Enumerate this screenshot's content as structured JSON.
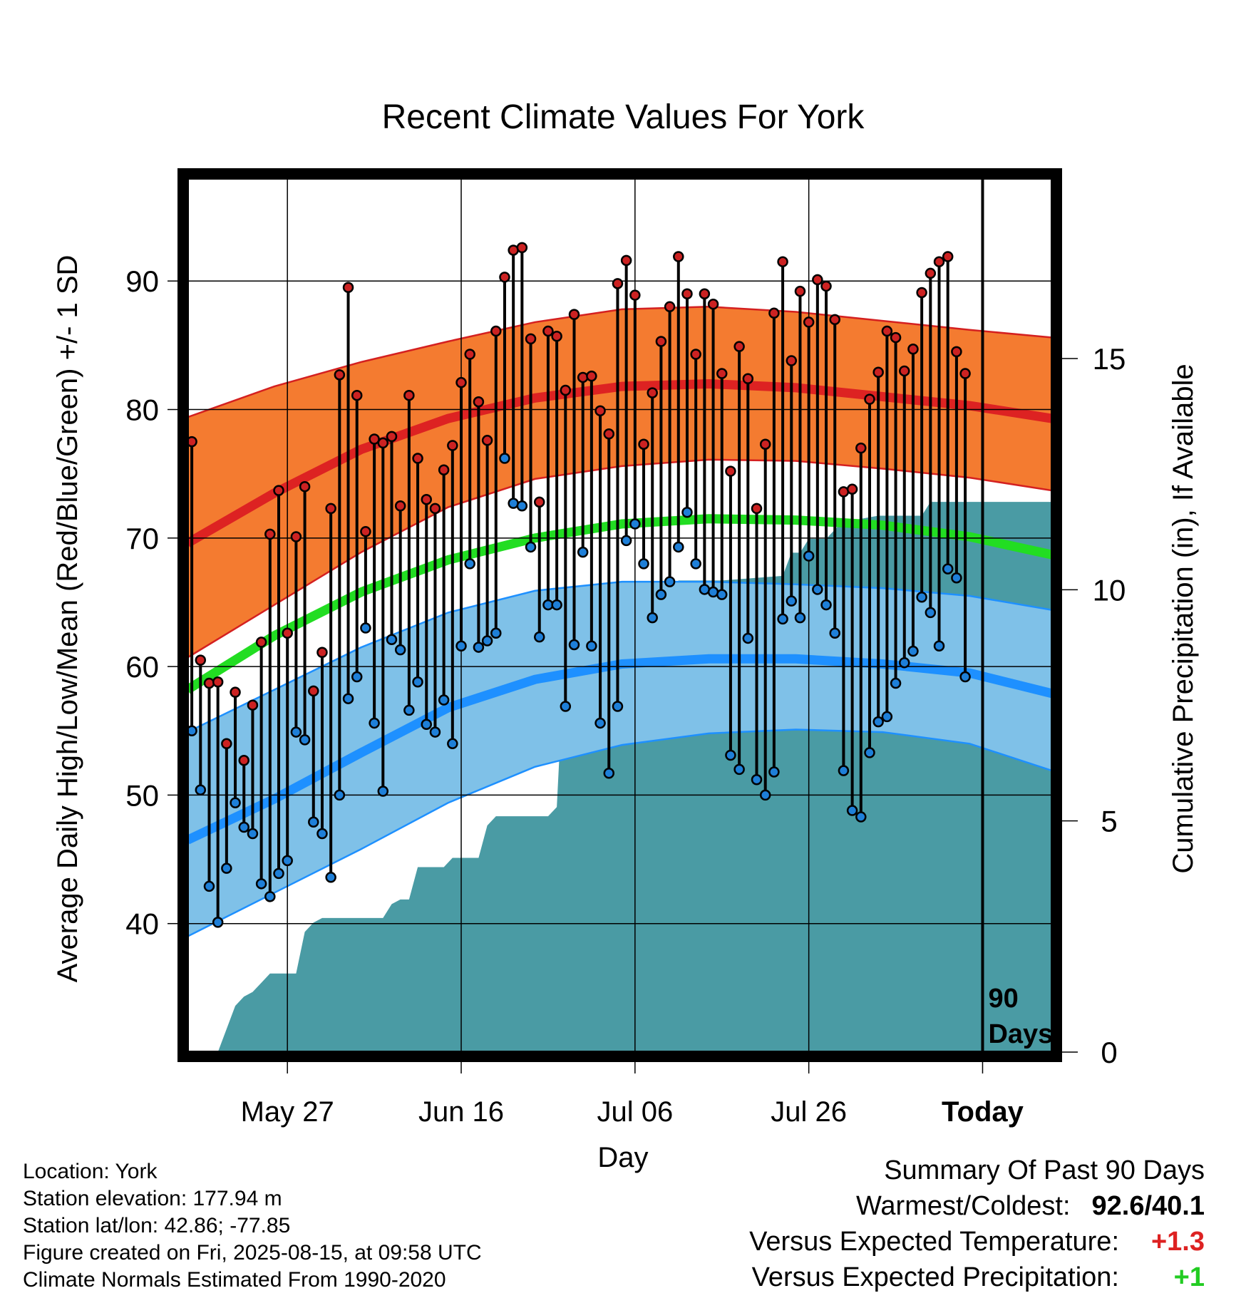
{
  "chart_data": {
    "type": "line",
    "title": "Recent Climate Values For York",
    "xlabel": "Day",
    "ylabel": "Average Daily High/Low/Mean (Red/Blue/Green) +/- 1 SD",
    "y2label": "Cumulative Precipitation (in), If Available",
    "ylim": [
      30,
      98
    ],
    "yticks": [
      40,
      50,
      60,
      70,
      80,
      90
    ],
    "y2lim": [
      0,
      18.9
    ],
    "y2ticks": [
      0,
      5,
      10,
      15
    ],
    "xlim": [
      -90,
      9.5
    ],
    "xticks": [
      {
        "x": -78.5,
        "label": "May 27"
      },
      {
        "x": -58.5,
        "label": "Jun 16"
      },
      {
        "x": -38.5,
        "label": "Jul 06"
      },
      {
        "x": -18.5,
        "label": "Jul 26"
      },
      {
        "x": 1.5,
        "label": "Today"
      }
    ],
    "today_marker_label": "90 Days",
    "grid": true,
    "colors": {
      "high_band": "#f47b30",
      "high_mean": "#dd2222",
      "low_band": "#7fc1e8",
      "low_mean": "#1e90ff",
      "mean": "#22dd22",
      "precip": "#4a9ba4",
      "high_dot": "#cc2222",
      "low_dot": "#1e7fd8"
    },
    "normals": {
      "x": [
        -90,
        -80,
        -70,
        -60,
        -50,
        -40,
        -30,
        -20,
        -10,
        0,
        9.5
      ],
      "high_mean": [
        69.6,
        73.5,
        76.9,
        79.3,
        80.9,
        81.8,
        82.0,
        81.7,
        81.0,
        80.3,
        79.3
      ],
      "high_plus_sd": [
        79.4,
        81.8,
        83.7,
        85.3,
        86.8,
        87.8,
        88.0,
        87.6,
        86.9,
        86.2,
        85.6
      ],
      "high_minus_sd": [
        60.7,
        64.8,
        68.9,
        72.4,
        74.6,
        75.6,
        76.1,
        76.0,
        75.4,
        74.7,
        73.7
      ],
      "low_mean": [
        46.5,
        49.7,
        53.3,
        56.8,
        59.0,
        60.2,
        60.6,
        60.6,
        60.2,
        59.5,
        57.9
      ],
      "low_plus_sd": [
        54.9,
        58.2,
        61.5,
        64.2,
        65.9,
        66.6,
        66.6,
        66.4,
        66.1,
        65.5,
        64.4
      ],
      "low_minus_sd": [
        39.0,
        42.4,
        45.8,
        49.4,
        52.2,
        53.9,
        54.8,
        55.1,
        54.9,
        54.0,
        51.9
      ],
      "mean": [
        58.2,
        62.4,
        65.8,
        68.3,
        70.0,
        71.1,
        71.5,
        71.4,
        71.0,
        70.1,
        68.7
      ]
    },
    "series": [
      {
        "name": "High",
        "values": [
          77.5,
          60.5,
          58.7,
          58.8,
          54.0,
          58.0,
          52.7,
          57.0,
          61.9,
          70.3,
          73.7,
          62.6,
          70.1,
          74.0,
          58.1,
          61.1,
          72.3,
          82.7,
          89.5,
          81.1,
          70.5,
          77.7,
          77.4,
          77.9,
          72.5,
          81.1,
          76.2,
          73.0,
          72.3,
          75.3,
          77.2,
          82.1,
          84.3,
          80.6,
          77.6,
          86.1,
          90.3,
          92.4,
          92.6,
          85.5,
          72.8,
          86.1,
          85.7,
          81.5,
          87.4,
          82.5,
          82.6,
          79.9,
          78.1,
          89.8,
          91.6,
          88.9,
          77.3,
          81.3,
          85.3,
          88.0,
          91.9,
          89.0,
          84.3,
          89.0,
          88.2,
          82.8,
          75.2,
          84.9,
          82.4,
          72.3,
          77.3,
          87.5,
          91.5,
          83.8,
          89.2,
          86.8,
          90.1,
          89.6,
          87.0,
          73.6,
          73.8,
          77.0,
          80.8,
          82.9,
          86.1,
          85.6,
          83.0,
          84.7,
          89.1,
          90.6,
          91.5,
          91.9,
          84.5,
          82.8
        ]
      },
      {
        "name": "Low",
        "values": [
          55.0,
          50.4,
          42.9,
          40.1,
          44.3,
          49.4,
          47.5,
          47.0,
          43.1,
          42.1,
          43.9,
          44.9,
          54.9,
          54.3,
          47.9,
          47.0,
          43.6,
          50.0,
          57.5,
          59.2,
          63.0,
          55.6,
          50.3,
          62.1,
          61.3,
          56.6,
          58.8,
          55.5,
          54.9,
          57.4,
          54.0,
          61.6,
          68.0,
          61.5,
          62.0,
          62.6,
          76.2,
          72.7,
          72.5,
          69.3,
          62.3,
          64.8,
          64.8,
          56.9,
          61.7,
          68.9,
          61.6,
          55.6,
          51.7,
          56.9,
          69.8,
          71.1,
          68.0,
          63.8,
          65.6,
          66.6,
          69.3,
          72.0,
          68.0,
          66.0,
          65.8,
          65.6,
          53.1,
          52.0,
          62.2,
          51.2,
          50.0,
          51.8,
          63.7,
          65.1,
          63.8,
          68.6,
          66.0,
          64.8,
          62.6,
          51.9,
          48.8,
          48.3,
          53.3,
          55.7,
          56.1,
          58.7,
          60.3,
          61.2,
          65.4,
          64.2,
          61.6,
          67.6,
          66.9,
          59.2
        ]
      }
    ],
    "precip_cumulative": {
      "x": [
        -86.5,
        -85.5,
        -84.5,
        -83.5,
        -82.5,
        -81.5,
        -80.5,
        -79.5,
        -78.5,
        -77.5,
        -76.5,
        -75.5,
        -74.5,
        -73.5,
        -72.5,
        -71.5,
        -70.5,
        -69.5,
        -68.5,
        -67.5,
        -66.5,
        -65.5,
        -64.5,
        -63.5,
        -62.5,
        -61.5,
        -60.5,
        -59.5,
        -58.5,
        -57.5,
        -56.5,
        -55.5,
        -54.5,
        -53.5,
        -52.5,
        -51.5,
        -50.5,
        -49.5,
        -48.5,
        -47.5,
        -46.5,
        -45.5,
        -44.5,
        -43.5,
        -42.5,
        -38.5,
        -36.5,
        -35.5,
        -34.5,
        -33.5,
        -32.5,
        -28.5,
        -21.5,
        -20.5,
        -19.5,
        -18.5,
        -16.5,
        -14.5,
        -13.5,
        -10.5,
        -5.5,
        -4.5,
        -3.5,
        9.5
      ],
      "values": [
        0.0,
        0.5,
        1.0,
        1.2,
        1.3,
        1.5,
        1.7,
        1.7,
        1.7,
        1.7,
        2.6,
        2.8,
        2.9,
        2.9,
        2.9,
        2.9,
        2.9,
        2.9,
        2.9,
        2.9,
        3.2,
        3.3,
        3.3,
        4.0,
        4.0,
        4.0,
        4.0,
        4.2,
        4.2,
        4.2,
        4.2,
        4.9,
        5.1,
        5.1,
        5.1,
        5.1,
        5.1,
        5.1,
        5.1,
        5.3,
        9.0,
        9.0,
        9.3,
        9.4,
        9.4,
        9.4,
        9.4,
        9.9,
        9.9,
        10.2,
        10.2,
        10.2,
        10.3,
        10.8,
        10.8,
        11.1,
        11.1,
        11.5,
        11.5,
        11.6,
        11.6,
        11.9,
        11.9,
        11.9
      ]
    }
  },
  "info": {
    "location": "Location: York",
    "elevation": "Station elevation: 177.94 m",
    "latlon": "Station lat/lon: 42.86; -77.85",
    "created": "Figure created on Fri, 2025-08-15, at 09:58 UTC",
    "normals": "Climate Normals Estimated From 1990-2020"
  },
  "summary": {
    "title": "Summary Of Past 90 Days",
    "warmest_label": "Warmest/Coldest:",
    "warmest_value": "92.6/40.1",
    "temp_label": "Versus Expected Temperature:",
    "temp_value": "+1.3",
    "temp_color": "#dd2222",
    "precip_label": "Versus Expected Precipitation:",
    "precip_value": "+1",
    "precip_color": "#22cc22"
  }
}
